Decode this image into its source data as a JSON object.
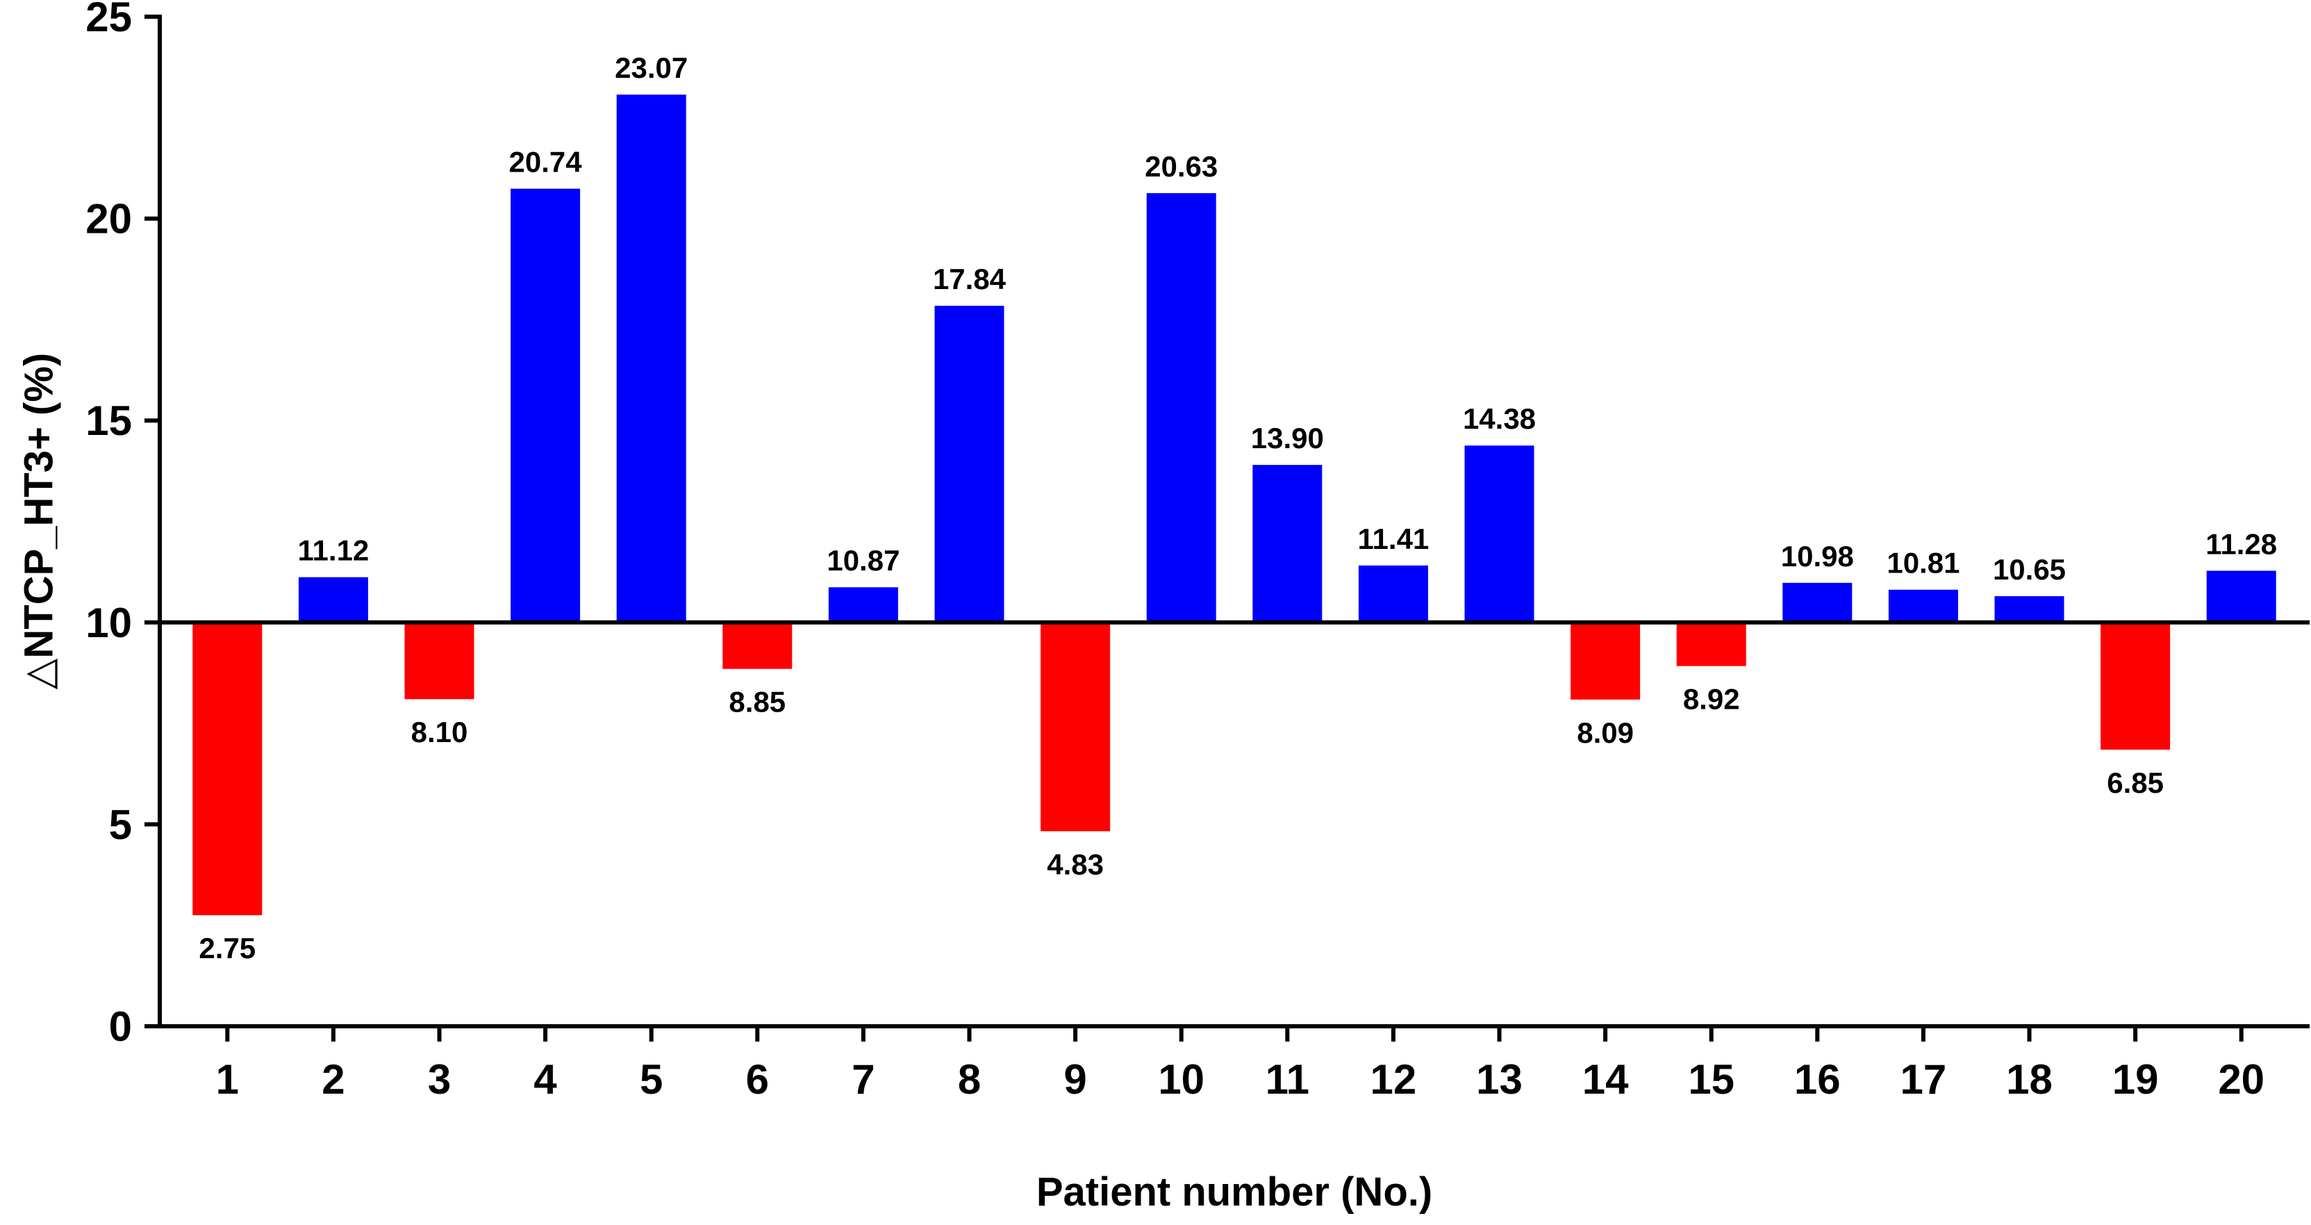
{
  "chart_data": {
    "type": "bar",
    "title": "",
    "xlabel": "Patient number (No.)",
    "ylabel": "△NTCP_HT3+ (%)",
    "ylim": [
      0,
      25
    ],
    "yticks": [
      0,
      5,
      10,
      15,
      20,
      25
    ],
    "baseline": 10,
    "grid": false,
    "categories": [
      "1",
      "2",
      "3",
      "4",
      "5",
      "6",
      "7",
      "8",
      "9",
      "10",
      "11",
      "12",
      "13",
      "14",
      "15",
      "16",
      "17",
      "18",
      "19",
      "20"
    ],
    "values": [
      2.75,
      11.12,
      8.1,
      20.74,
      23.07,
      8.85,
      10.87,
      17.84,
      4.83,
      20.63,
      13.9,
      11.41,
      14.38,
      8.09,
      8.92,
      10.98,
      10.81,
      10.65,
      6.85,
      11.28
    ],
    "value_labels": [
      "2.75",
      "11.12",
      "8.10",
      "20.74",
      "23.07",
      "8.85",
      "10.87",
      "17.84",
      "4.83",
      "20.63",
      "13.90",
      "11.41",
      "14.38",
      "8.09",
      "8.92",
      "10.98",
      "10.81",
      "10.65",
      "6.85",
      "11.28"
    ],
    "colors": {
      "above_baseline": "#0000ff",
      "below_baseline": "#ff0000",
      "axis": "#000000",
      "background": "#ffffff"
    }
  }
}
